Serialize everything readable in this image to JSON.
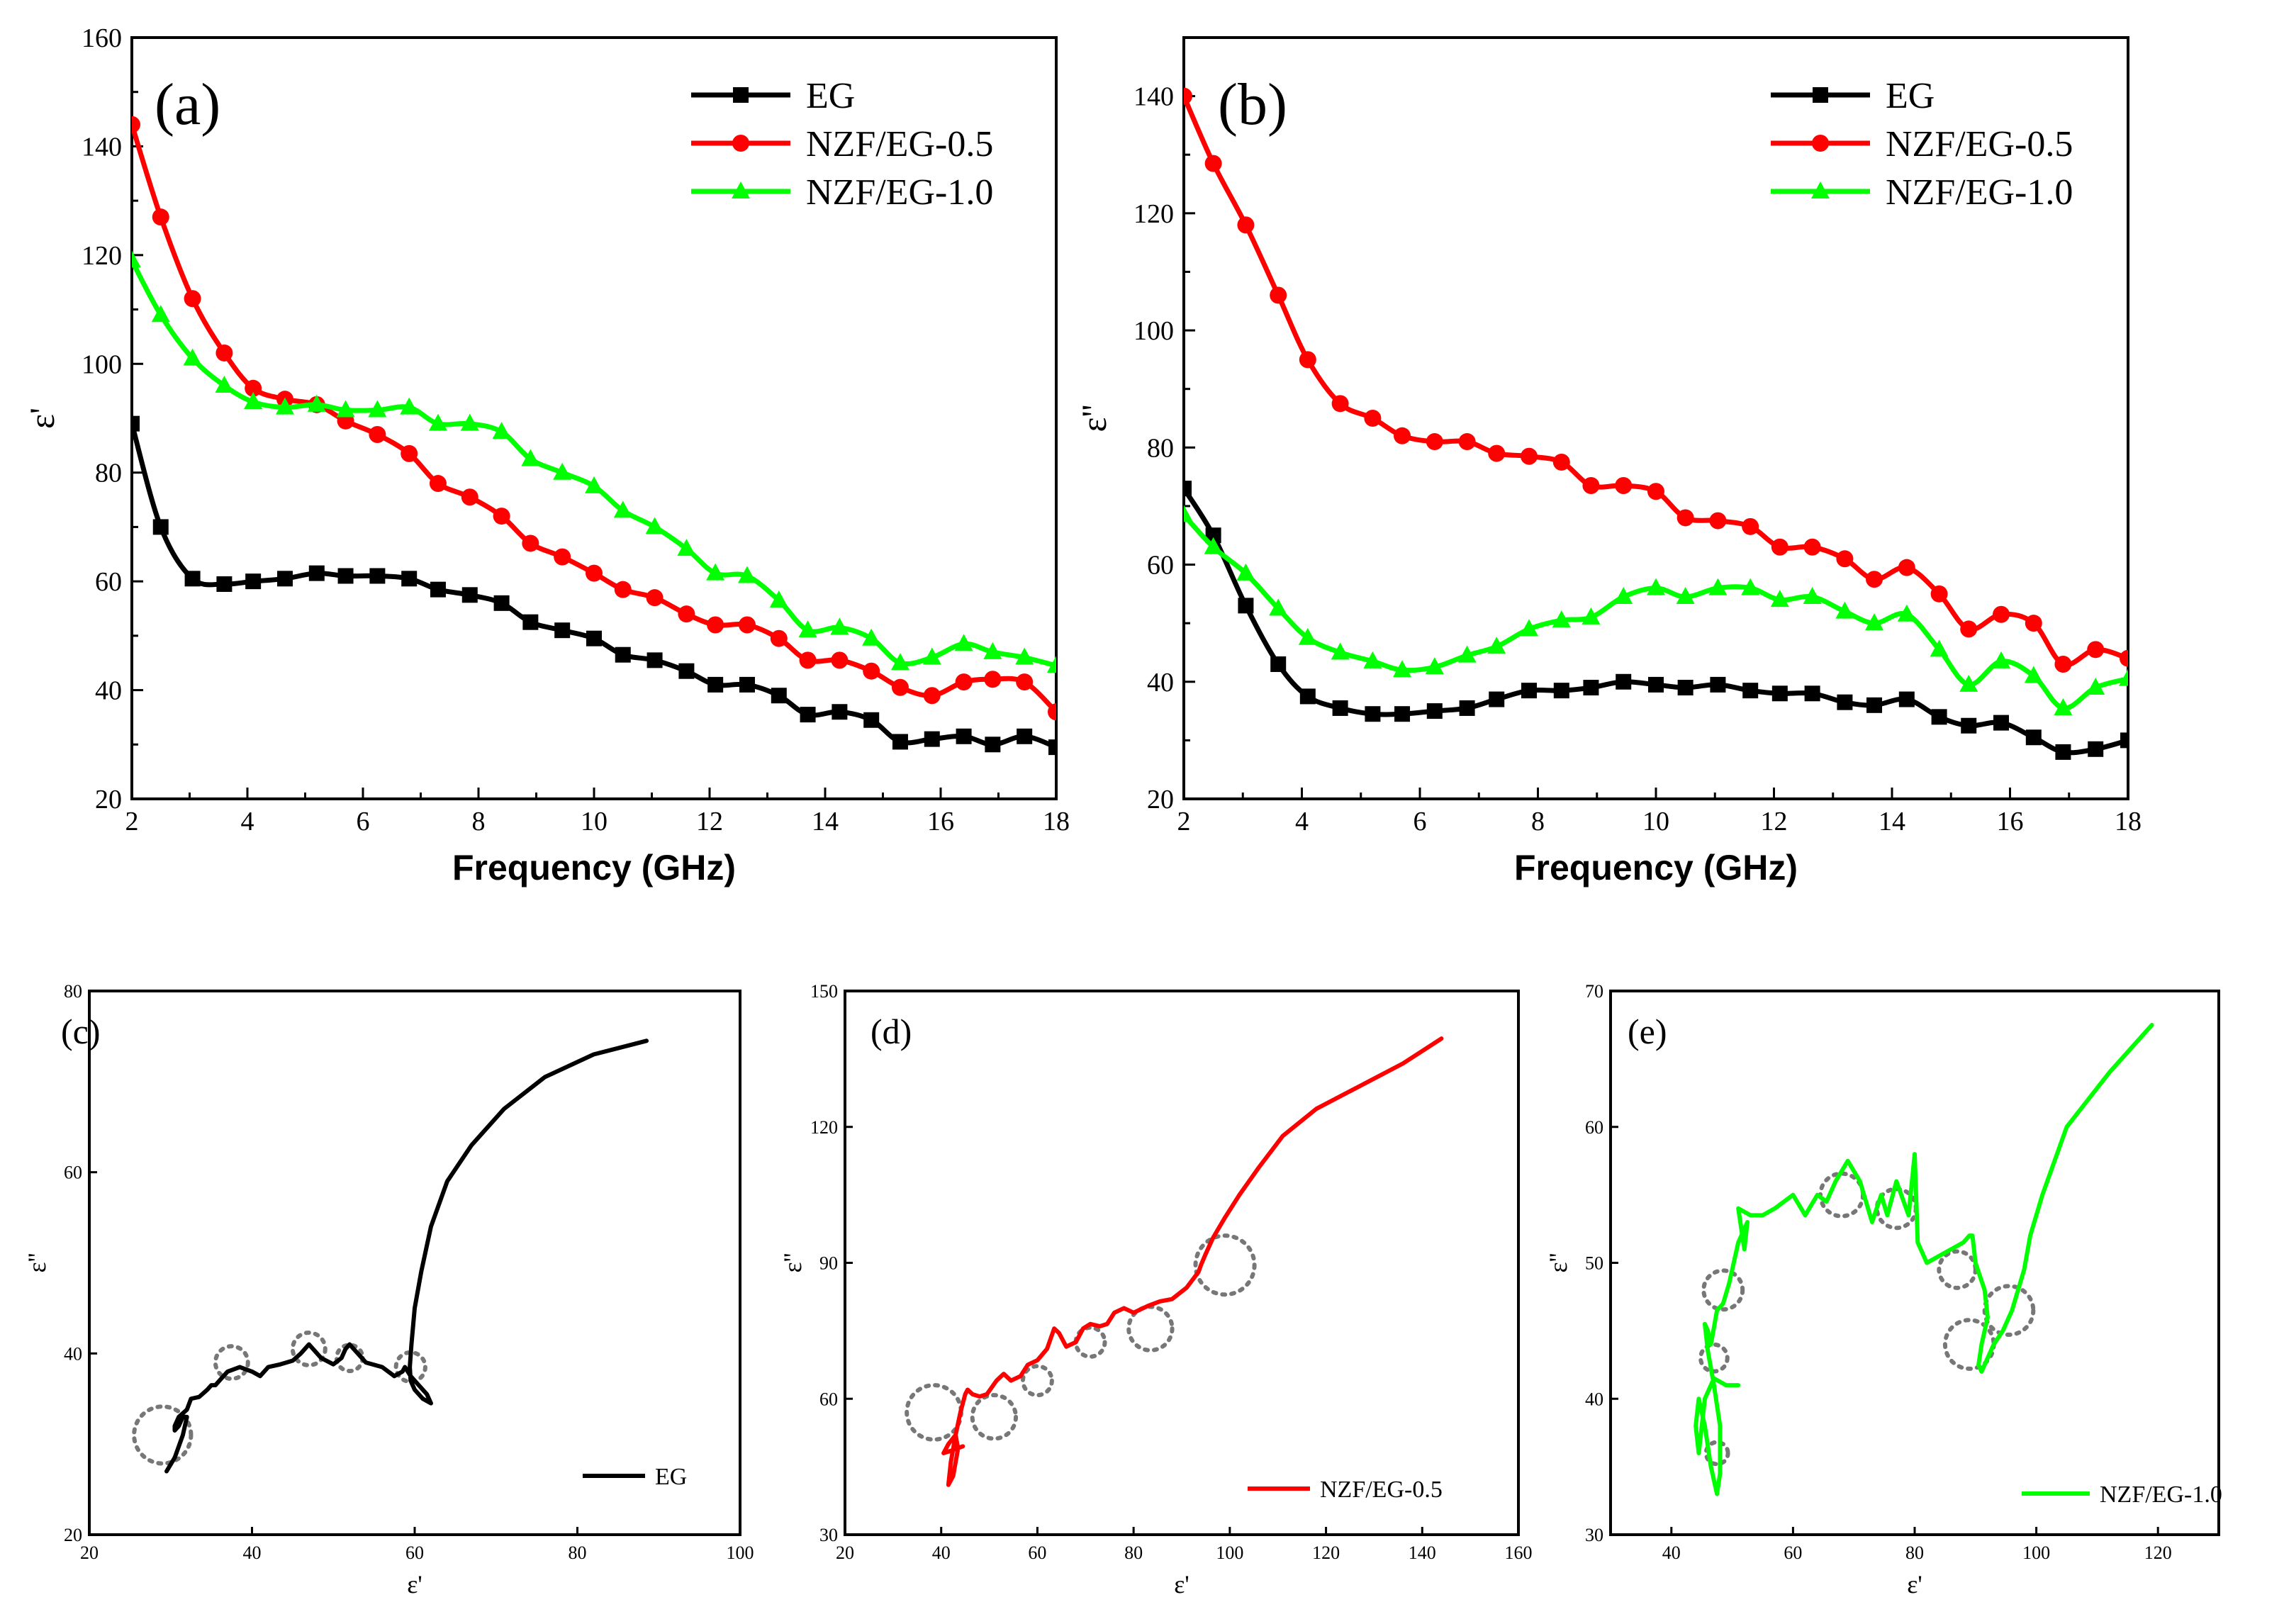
{
  "colors": {
    "EG": "#000000",
    "NZF/EG-0.5": "#ff0000",
    "NZF/EG-1.0": "#00ff00",
    "circle": "#777777"
  },
  "chart_data": [
    {
      "id": "a",
      "type": "line",
      "panel_label": "(a)",
      "title": "",
      "xlabel": "Frequency (GHz)",
      "ylabel": "ε'",
      "xlim": [
        2,
        18
      ],
      "ylim": [
        20,
        160
      ],
      "xticks": [
        2,
        4,
        6,
        8,
        10,
        12,
        14,
        16,
        18
      ],
      "yticks": [
        20,
        40,
        60,
        80,
        100,
        120,
        140,
        160
      ],
      "legend_position": "top-right",
      "series": [
        {
          "name": "EG",
          "marker": "square",
          "x": [
            2,
            2.5,
            3.05,
            3.6,
            4.1,
            4.65,
            5.2,
            5.7,
            6.25,
            6.8,
            7.3,
            7.85,
            8.4,
            8.9,
            9.45,
            10,
            10.5,
            11.05,
            11.6,
            12.1,
            12.65,
            13.2,
            13.7,
            14.25,
            14.8,
            15.3,
            15.85,
            16.4,
            16.9,
            17.45,
            18
          ],
          "y": [
            89,
            70,
            60.5,
            59.5,
            60,
            60.5,
            61.5,
            61,
            61,
            60.5,
            58.5,
            57.5,
            56,
            52.5,
            51,
            49.5,
            46.5,
            45.5,
            43.5,
            41,
            41,
            39,
            35.5,
            36,
            34.5,
            30.5,
            31,
            31.5,
            30,
            31.5,
            29.5
          ]
        },
        {
          "name": "NZF/EG-0.5",
          "marker": "circle",
          "x": [
            2,
            2.5,
            3.05,
            3.6,
            4.1,
            4.65,
            5.2,
            5.7,
            6.25,
            6.8,
            7.3,
            7.85,
            8.4,
            8.9,
            9.45,
            10,
            10.5,
            11.05,
            11.6,
            12.1,
            12.65,
            13.2,
            13.7,
            14.25,
            14.8,
            15.3,
            15.85,
            16.4,
            16.9,
            17.45,
            18
          ],
          "y": [
            144,
            127,
            112,
            102,
            95.5,
            93.5,
            92.5,
            89.5,
            87,
            83.5,
            78,
            75.5,
            72,
            67,
            64.5,
            61.5,
            58.5,
            57,
            54,
            52,
            52,
            49.5,
            45.5,
            45.5,
            43.5,
            40.5,
            39,
            41.5,
            42,
            41.5,
            36
          ]
        },
        {
          "name": "NZF/EG-1.0",
          "marker": "triangle",
          "x": [
            2,
            2.5,
            3.05,
            3.6,
            4.1,
            4.65,
            5.2,
            5.7,
            6.25,
            6.8,
            7.3,
            7.85,
            8.4,
            8.9,
            9.45,
            10,
            10.5,
            11.05,
            11.6,
            12.1,
            12.65,
            13.2,
            13.7,
            14.25,
            14.8,
            15.3,
            15.85,
            16.4,
            16.9,
            17.45,
            18
          ],
          "y": [
            119,
            109,
            101,
            96,
            93,
            92,
            92.5,
            91.5,
            91.5,
            92,
            89,
            89,
            87.5,
            82.5,
            80,
            77.5,
            73,
            70,
            66,
            61.5,
            61,
            56.5,
            51,
            51.5,
            49.5,
            45,
            46,
            48.5,
            47,
            46,
            44.5
          ]
        }
      ]
    },
    {
      "id": "b",
      "type": "line",
      "panel_label": "(b)",
      "title": "",
      "xlabel": "Frequency (GHz)",
      "ylabel": "ε''",
      "xlim": [
        2,
        18
      ],
      "ylim": [
        20,
        150
      ],
      "xticks": [
        2,
        4,
        6,
        8,
        10,
        12,
        14,
        16,
        18
      ],
      "yticks": [
        20,
        40,
        60,
        80,
        100,
        120,
        140
      ],
      "legend_position": "top-right",
      "series": [
        {
          "name": "EG",
          "marker": "square",
          "x": [
            2,
            2.5,
            3.05,
            3.6,
            4.1,
            4.65,
            5.2,
            5.7,
            6.25,
            6.8,
            7.3,
            7.85,
            8.4,
            8.9,
            9.45,
            10,
            10.5,
            11.05,
            11.6,
            12.1,
            12.65,
            13.2,
            13.7,
            14.25,
            14.8,
            15.3,
            15.85,
            16.4,
            16.9,
            17.45,
            18
          ],
          "y": [
            73,
            65,
            53,
            43,
            37.5,
            35.5,
            34.5,
            34.5,
            35,
            35.5,
            37,
            38.5,
            38.5,
            39,
            40,
            39.5,
            39,
            39.5,
            38.5,
            38,
            38,
            36.5,
            36,
            37,
            34,
            32.5,
            33,
            30.5,
            28,
            28.5,
            30
          ]
        },
        {
          "name": "NZF/EG-0.5",
          "marker": "circle",
          "x": [
            2,
            2.5,
            3.05,
            3.6,
            4.1,
            4.65,
            5.2,
            5.7,
            6.25,
            6.8,
            7.3,
            7.85,
            8.4,
            8.9,
            9.45,
            10,
            10.5,
            11.05,
            11.6,
            12.1,
            12.65,
            13.2,
            13.7,
            14.25,
            14.8,
            15.3,
            15.85,
            16.4,
            16.9,
            17.45,
            18
          ],
          "y": [
            140,
            128.5,
            118,
            106,
            95,
            87.5,
            85,
            82,
            81,
            81,
            79,
            78.5,
            77.5,
            73.5,
            73.5,
            72.5,
            68,
            67.5,
            66.5,
            63,
            63,
            61,
            57.5,
            59.5,
            55,
            49,
            51.5,
            50,
            43,
            45.5,
            44
          ]
        },
        {
          "name": "NZF/EG-1.0",
          "marker": "triangle",
          "x": [
            2,
            2.5,
            3.05,
            3.6,
            4.1,
            4.65,
            5.2,
            5.7,
            6.25,
            6.8,
            7.3,
            7.85,
            8.4,
            8.9,
            9.45,
            10,
            10.5,
            11.05,
            11.6,
            12.1,
            12.65,
            13.2,
            13.7,
            14.25,
            14.8,
            15.3,
            15.85,
            16.4,
            16.9,
            17.45,
            18
          ],
          "y": [
            68.5,
            63,
            58.5,
            52.5,
            47.5,
            45,
            43.5,
            42,
            42.5,
            44.5,
            46,
            49,
            50.5,
            51,
            54.5,
            56,
            54.5,
            56,
            56,
            54,
            54.5,
            52,
            50,
            51.5,
            45.5,
            39.5,
            43.5,
            41,
            35.5,
            39,
            40.5
          ]
        }
      ]
    },
    {
      "id": "c",
      "type": "line",
      "panel_label": "(c)",
      "title": "",
      "xlabel": "ε'",
      "ylabel": "ε''",
      "xlim": [
        20,
        100
      ],
      "ylim": [
        20,
        80
      ],
      "xticks": [
        20,
        40,
        60,
        80,
        100
      ],
      "yticks": [
        20,
        40,
        60,
        80
      ],
      "legend_position": "bottom-right",
      "series": [
        {
          "name": "EG",
          "x": [
            88.5,
            82,
            76,
            71,
            67,
            64,
            62,
            60.8,
            60,
            59.6,
            59.4,
            59.5,
            60,
            61,
            62,
            61.5,
            60.5,
            59.5,
            58.8,
            58.5,
            57.5,
            56,
            54,
            52.5,
            52,
            51.5,
            51,
            50,
            48.5,
            47,
            46,
            45,
            43.5,
            42,
            41.5,
            41,
            40,
            38.5,
            37,
            36,
            35.5,
            35,
            34.5,
            33.5,
            32.5,
            32,
            31,
            30.5,
            30.5,
            31,
            31.5,
            32,
            31.5,
            30.5,
            29.5
          ],
          "y": [
            74.5,
            73,
            70.5,
            67,
            63,
            59,
            54,
            49,
            45,
            41,
            38.5,
            37,
            36,
            35,
            34.5,
            35.5,
            36.5,
            37.5,
            38.5,
            38,
            37.5,
            38.5,
            39,
            40.5,
            41,
            40.5,
            39.5,
            38.8,
            39.5,
            41,
            40,
            39.2,
            38.8,
            38.5,
            38,
            37.5,
            38,
            38.5,
            38,
            37,
            36.5,
            36.5,
            36,
            35.2,
            35,
            33.8,
            33,
            32,
            31.5,
            32,
            33,
            33,
            31,
            28.5,
            27
          ]
        }
      ],
      "circles": [
        {
          "cx": 29,
          "cy": 31,
          "r": 3.5
        },
        {
          "cx": 37.5,
          "cy": 39,
          "r": 2
        },
        {
          "cx": 47,
          "cy": 40.5,
          "r": 2
        },
        {
          "cx": 52,
          "cy": 39.5,
          "r": 1.6
        },
        {
          "cx": 59.5,
          "cy": 38.5,
          "r": 1.8
        }
      ]
    },
    {
      "id": "d",
      "type": "line",
      "panel_label": "(d)",
      "title": "",
      "xlabel": "ε'",
      "ylabel": "ε''",
      "xlim": [
        20,
        160
      ],
      "ylim": [
        30,
        150
      ],
      "xticks": [
        20,
        40,
        60,
        80,
        100,
        120,
        140,
        160
      ],
      "yticks": [
        30,
        60,
        90,
        120,
        150
      ],
      "legend_position": "bottom-right",
      "series": [
        {
          "name": "NZF/EG-0.5",
          "x": [
            144,
            136,
            127,
            118,
            111,
            106,
            102,
            99,
            96.5,
            95,
            94,
            93.5,
            91,
            88,
            85.5,
            83,
            80,
            78,
            76,
            74.5,
            73,
            71,
            69.5,
            68,
            66,
            64.5,
            63.5,
            62,
            60,
            58,
            56.5,
            54.5,
            53,
            51.5,
            49.5,
            48,
            46.5,
            45.5,
            45,
            44,
            43,
            42,
            41.5,
            42.5,
            43.5,
            43,
            41.5,
            40.5,
            42,
            44.5
          ],
          "y": [
            139.5,
            134,
            129,
            124,
            118,
            111,
            105,
            100,
            95.5,
            92,
            89.5,
            88,
            84.5,
            82,
            81.5,
            80.5,
            79,
            80,
            79,
            76.5,
            76,
            76.5,
            75.5,
            72.5,
            71.5,
            74.5,
            75.5,
            71,
            68.5,
            67.5,
            65,
            64,
            65.5,
            64,
            61,
            60.5,
            61,
            62,
            61,
            57,
            52,
            46,
            41,
            43,
            49,
            52,
            50,
            48,
            48.5,
            49.5
          ]
        }
      ],
      "circles": [
        {
          "cx": 99,
          "cy": 89.5,
          "r": 6.5
        },
        {
          "cx": 83.5,
          "cy": 75.5,
          "r": 4.8
        },
        {
          "cx": 71,
          "cy": 72.5,
          "r": 3.2
        },
        {
          "cx": 60,
          "cy": 64,
          "r": 3.2
        },
        {
          "cx": 51,
          "cy": 56,
          "r": 4.8
        },
        {
          "cx": 38.5,
          "cy": 57,
          "r": 6
        }
      ]
    },
    {
      "id": "e",
      "type": "line",
      "panel_label": "(e)",
      "title": "",
      "xlabel": "ε'",
      "ylabel": "ε''",
      "xlim": [
        30,
        130
      ],
      "ylim": [
        30,
        70
      ],
      "xticks": [
        40,
        60,
        80,
        100,
        120
      ],
      "yticks": [
        30,
        40,
        50,
        60,
        70
      ],
      "legend_position": "bottom-right",
      "series": [
        {
          "name": "NZF/EG-1.0",
          "x": [
            119,
            112,
            105,
            101,
            99,
            98,
            97,
            96,
            94.5,
            93,
            92,
            91.5,
            91,
            90.5,
            91,
            92,
            91.5,
            90,
            89.5,
            89,
            88,
            86,
            84,
            82,
            80.5,
            80,
            79,
            77,
            75.5,
            74.5,
            73,
            71,
            69,
            67,
            65.5,
            64,
            62,
            60,
            57,
            55,
            53,
            51,
            52,
            52.5,
            51,
            49.5,
            48.5,
            47.5,
            46.5,
            46,
            45.5,
            46,
            47,
            48,
            48,
            47.5,
            46.5,
            45.5,
            44.5,
            44,
            44.5,
            45.5,
            47,
            49,
            51
          ],
          "y": [
            67.5,
            64,
            60,
            55,
            52,
            49.5,
            48,
            46.5,
            45,
            44,
            43,
            42.5,
            42,
            42.5,
            44,
            46,
            48,
            50,
            52,
            52,
            51.5,
            51,
            50.5,
            50,
            51.5,
            58,
            53.5,
            56,
            53.5,
            55,
            53,
            56,
            57.5,
            56,
            54.5,
            55,
            53.5,
            55,
            54,
            53.5,
            53.5,
            54,
            51,
            53,
            51.5,
            48.5,
            47,
            46.5,
            44,
            45,
            45.5,
            43.5,
            41,
            38,
            34.5,
            33,
            35,
            38,
            40,
            38,
            36,
            40,
            41.5,
            41,
            41
          ]
        }
      ],
      "circles": [
        {
          "cx": 48.5,
          "cy": 48,
          "r": 3.2
        },
        {
          "cx": 47,
          "cy": 43,
          "r": 2.2
        },
        {
          "cx": 47.5,
          "cy": 36,
          "r": 1.8
        },
        {
          "cx": 68,
          "cy": 55,
          "r": 3.5
        },
        {
          "cx": 77,
          "cy": 54,
          "r": 3.2
        },
        {
          "cx": 87,
          "cy": 49.5,
          "r": 3
        },
        {
          "cx": 89,
          "cy": 44,
          "r": 4
        },
        {
          "cx": 95.5,
          "cy": 46.5,
          "r": 4
        }
      ]
    }
  ]
}
